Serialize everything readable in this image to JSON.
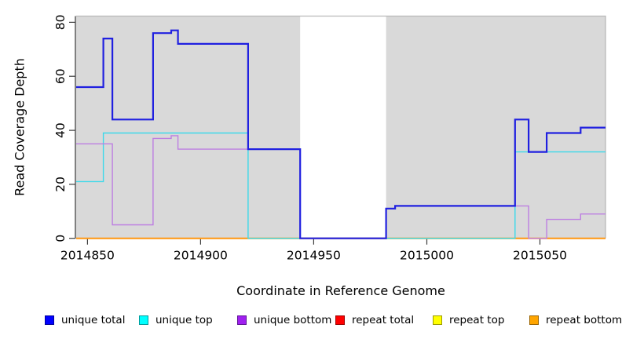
{
  "chart_data": {
    "type": "line",
    "subtype": "step-after",
    "xlabel": "Coordinate in Reference Genome",
    "ylabel": "Read Coverage Depth",
    "xlim": [
      2014845,
      2015079
    ],
    "ylim": [
      0,
      82.3
    ],
    "x_ticks": [
      2014850,
      2014900,
      2014950,
      2015000,
      2015050
    ],
    "y_ticks": [
      0,
      20,
      40,
      60,
      80
    ],
    "grid": false,
    "background_shading": {
      "color": "#d9d9d9",
      "edge_color": "#b9b9b9",
      "regions": [
        [
          2014845,
          2014944
        ],
        [
          2014982,
          2015079
        ]
      ],
      "gap_note": "white unshaded gap between 2014944 and 2014982"
    },
    "series": [
      {
        "name": "unique total",
        "color": "#2020e0",
        "line_width": 2.2,
        "points": [
          [
            2014845,
            56
          ],
          [
            2014857,
            74
          ],
          [
            2014861,
            44
          ],
          [
            2014879,
            76
          ],
          [
            2014887,
            77
          ],
          [
            2014890,
            72
          ],
          [
            2014921,
            33
          ],
          [
            2014944,
            0
          ],
          [
            2014982,
            11
          ],
          [
            2014986,
            12
          ],
          [
            2015039,
            44
          ],
          [
            2015045,
            32
          ],
          [
            2015053,
            39
          ],
          [
            2015068,
            41
          ]
        ]
      },
      {
        "name": "unique top",
        "color": "#3cd9ea",
        "line_width": 1.4,
        "points": [
          [
            2014845,
            21
          ],
          [
            2014857,
            39
          ],
          [
            2014921,
            0
          ],
          [
            2015039,
            32
          ]
        ]
      },
      {
        "name": "unique bottom",
        "color": "#bd7fe1",
        "line_width": 1.4,
        "points": [
          [
            2014845,
            35
          ],
          [
            2014861,
            5
          ],
          [
            2014879,
            37
          ],
          [
            2014887,
            38
          ],
          [
            2014890,
            33
          ],
          [
            2014944,
            0
          ],
          [
            2014982,
            11
          ],
          [
            2014986,
            12
          ],
          [
            2015045,
            0
          ],
          [
            2015053,
            7
          ],
          [
            2015068,
            9
          ]
        ]
      },
      {
        "name": "repeat total",
        "color": "#cc2222",
        "line_width": 1.4,
        "points": [
          [
            2014845,
            0
          ]
        ]
      },
      {
        "name": "repeat top",
        "color": "#eded2a",
        "line_width": 1.4,
        "points": [
          [
            2014845,
            0
          ]
        ]
      },
      {
        "name": "repeat bottom",
        "color": "#ff9712",
        "line_width": 2,
        "points": [
          [
            2014845,
            0
          ]
        ]
      }
    ],
    "draw_order": [
      3,
      4,
      5,
      1,
      2,
      0
    ],
    "legend": {
      "position": "bottom",
      "items": [
        {
          "label": "unique total",
          "fill": "#0000ff",
          "border": "#00009b"
        },
        {
          "label": "unique top",
          "fill": "#00ffff",
          "border": "#009b9b"
        },
        {
          "label": "unique bottom",
          "fill": "#a020f0",
          "border": "#5e1396"
        },
        {
          "label": "repeat total",
          "fill": "#ff0000",
          "border": "#9b0000"
        },
        {
          "label": "repeat top",
          "fill": "#ffff00",
          "border": "#9b9b00"
        },
        {
          "label": "repeat bottom",
          "fill": "#ffa500",
          "border": "#9b6400"
        }
      ]
    }
  }
}
